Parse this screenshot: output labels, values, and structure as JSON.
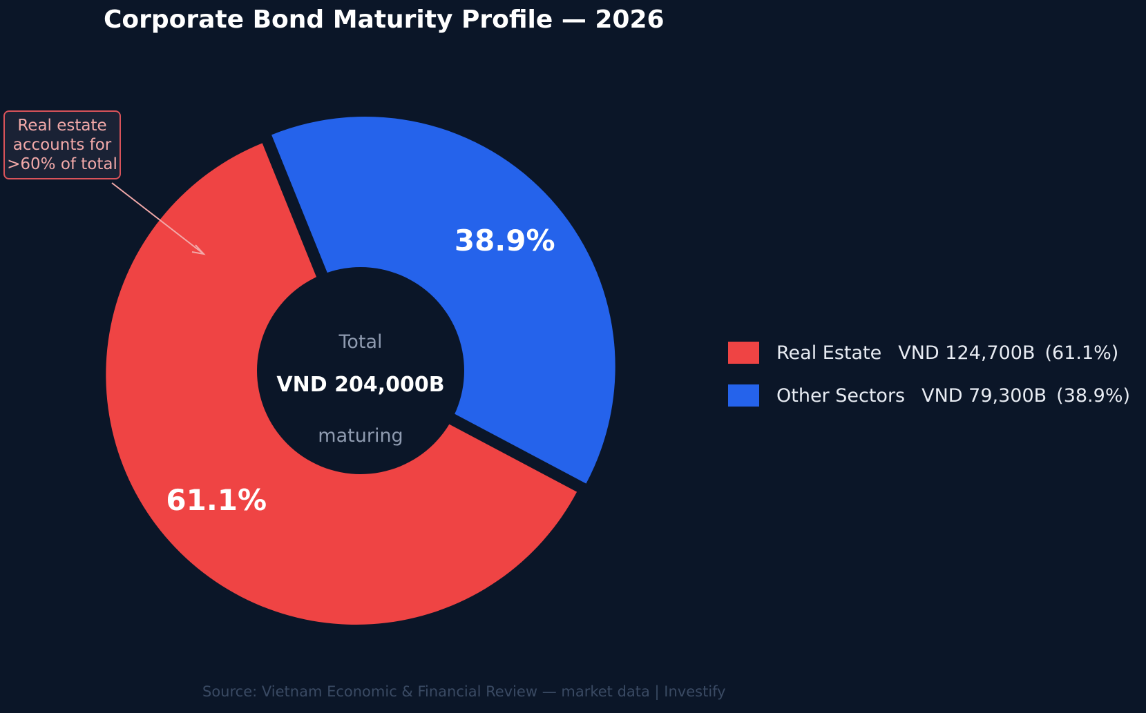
{
  "chart_data": {
    "type": "pie",
    "style": "donut",
    "title": "Corporate Bond Maturity Profile — 2026",
    "categories": [
      "Real Estate",
      "Other Sectors"
    ],
    "values": [
      124700,
      79300
    ],
    "unit": "VND billion",
    "percent_labels": [
      "61.1%",
      "38.9%"
    ],
    "colors": [
      "#ef4444",
      "#2563eb"
    ],
    "exploded_slices": [
      "Real Estate",
      "Other Sectors"
    ],
    "center_label": {
      "top": "Total",
      "value": "VND 204,000B",
      "bottom": "maturing"
    },
    "legend": {
      "placement": "right",
      "entries": [
        {
          "name": "Real Estate",
          "value": "VND 124,700B",
          "pct": "(61.1%)",
          "color": "#ef4444"
        },
        {
          "name": "Other Sectors",
          "value": "VND 79,300B",
          "pct": "(38.9%)",
          "color": "#2563eb"
        }
      ]
    },
    "annotation": {
      "lines": [
        "Real estate",
        "accounts for",
        ">60% of total"
      ],
      "target": "Real Estate",
      "color": "#f2a9a9"
    }
  },
  "footer": {
    "source": "Source: Vietnam Economic & Financial Review — market data  |  Investify"
  },
  "colors": {
    "background": "#0b1628",
    "hole": "#0b1628",
    "callout_border": "#d9535a"
  }
}
